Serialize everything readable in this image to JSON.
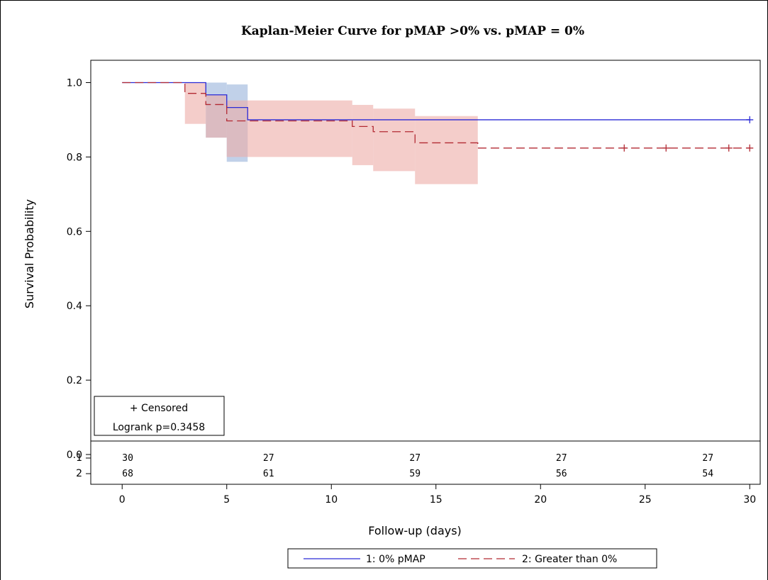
{
  "chart_data": {
    "type": "line",
    "title": "Kaplan-Meier Curve for pMAP >0% vs. pMAP = 0%",
    "xlabel": "Follow-up (days)",
    "ylabel": "Survival Probability",
    "xlim": [
      -1.5,
      30.5
    ],
    "ylim": [
      -0.08,
      1.06
    ],
    "xticks": [
      0,
      5,
      10,
      15,
      20,
      25,
      30
    ],
    "xtick_labels": [
      "0",
      "5",
      "10",
      "15",
      "20",
      "25",
      "30"
    ],
    "yticks": [
      0.0,
      0.2,
      0.4,
      0.6,
      0.8,
      1.0
    ],
    "ytick_labels": [
      "0.0",
      "0.2",
      "0.4",
      "0.6",
      "0.8",
      "1.0"
    ],
    "grid": false,
    "legend_position": "bottom",
    "series": [
      {
        "name": "1: 0% pMAP",
        "color": "#2a2ad6",
        "band_color": "#a7bde0",
        "style": "solid",
        "steps": [
          [
            0,
            1.0
          ],
          [
            4,
            0.967
          ],
          [
            5,
            0.933
          ],
          [
            6,
            0.9
          ],
          [
            30,
            0.9
          ]
        ],
        "ci_band": [
          [
            4,
            0.852,
            1.0
          ],
          [
            5,
            0.787,
            0.995
          ],
          [
            6,
            0.762,
            0.983
          ],
          [
            6,
            0.762,
            0.983
          ]
        ],
        "censored_x": [
          30
        ],
        "at_risk": [
          30,
          27,
          27,
          27,
          27
        ]
      },
      {
        "name": "2: Greater than 0%",
        "color": "#b22a33",
        "band_color": "#ecaca6",
        "style": "dashed",
        "steps": [
          [
            0,
            1.0
          ],
          [
            3,
            0.971
          ],
          [
            4,
            0.941
          ],
          [
            5,
            0.897
          ],
          [
            11,
            0.882
          ],
          [
            12,
            0.868
          ],
          [
            14,
            0.838
          ],
          [
            17,
            0.824
          ],
          [
            30,
            0.824
          ]
        ],
        "ci_band": [
          [
            3,
            0.889,
            1.0
          ],
          [
            4,
            0.852,
            0.966
          ],
          [
            5,
            0.8,
            0.952
          ],
          [
            11,
            0.778,
            0.94
          ],
          [
            12,
            0.762,
            0.93
          ],
          [
            14,
            0.727,
            0.91
          ],
          [
            17,
            0.727,
            0.91
          ]
        ],
        "censored_x": [
          24,
          26,
          29,
          30
        ],
        "at_risk": [
          68,
          61,
          59,
          56,
          54
        ]
      }
    ],
    "at_risk_x": [
      0,
      7,
      14,
      21,
      28
    ],
    "at_risk_row_labels": [
      "1",
      "2"
    ],
    "inset_legend": [
      "+ Censored",
      "Logrank p=0.3458"
    ]
  }
}
